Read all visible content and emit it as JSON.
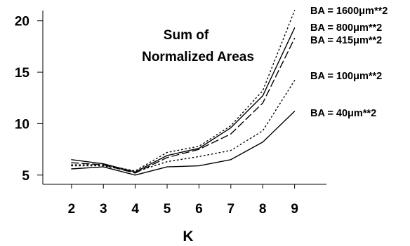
{
  "chart_data": {
    "type": "line",
    "title": [
      "Sum of",
      "Normalized Areas"
    ],
    "xlabel": "K",
    "ylabel": "",
    "x": [
      2,
      3,
      4,
      5,
      6,
      7,
      8,
      9
    ],
    "xticks": [
      "2",
      "3",
      "4",
      "5",
      "6",
      "7",
      "8",
      "9"
    ],
    "yticks": [
      "5",
      "10",
      "15",
      "20"
    ],
    "ytick_values": [
      5,
      10,
      15,
      20
    ],
    "xlim": [
      1.1,
      10.0
    ],
    "ylim": [
      4.1,
      21.0
    ],
    "grid": false,
    "legend": "none",
    "series": [
      {
        "name": "BA = 1600μm**2",
        "style": "dotted",
        "values": [
          6.0,
          6.0,
          5.4,
          7.2,
          7.8,
          9.8,
          13.2,
          21.0
        ]
      },
      {
        "name": "BA = 800μm**2",
        "style": "solid",
        "values": [
          6.5,
          6.1,
          5.3,
          6.9,
          7.6,
          9.6,
          12.7,
          19.3
        ]
      },
      {
        "name": "BA = 415μm**2",
        "style": "dashed",
        "values": [
          6.2,
          6.0,
          5.2,
          6.7,
          7.5,
          9.0,
          12.0,
          18.3
        ]
      },
      {
        "name": "BA = 100μm**2",
        "style": "dotted",
        "values": [
          5.9,
          5.9,
          5.3,
          6.3,
          6.8,
          7.4,
          9.3,
          14.2
        ]
      },
      {
        "name": "BA = 40μm**2",
        "style": "solid",
        "values": [
          5.6,
          5.8,
          5.0,
          5.8,
          5.9,
          6.5,
          8.2,
          11.2
        ]
      }
    ]
  }
}
